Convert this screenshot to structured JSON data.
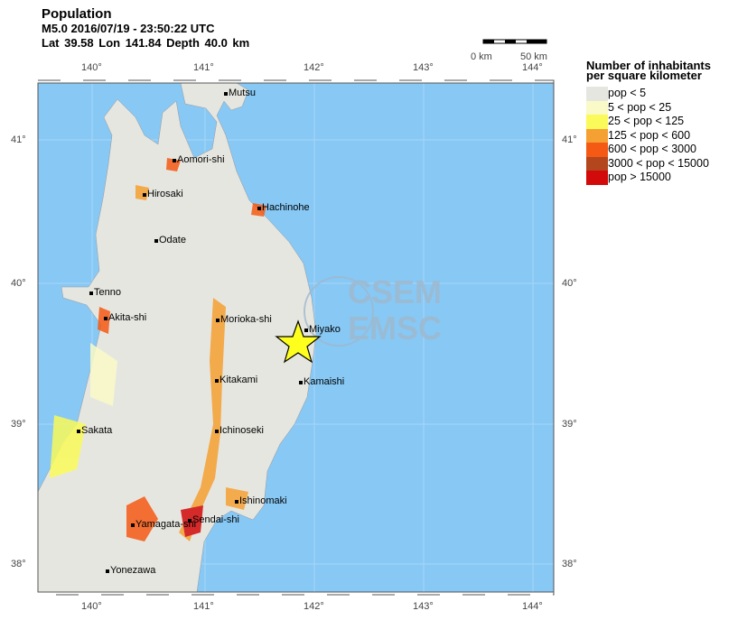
{
  "header": {
    "title": "Population",
    "event": "M5.0  2016/07/19 - 23:50:22 UTC",
    "location": "Lat 39.58    Lon 141.84    Depth  40.0 km"
  },
  "scale_bar": {
    "start": "0 km",
    "end": "50 km"
  },
  "axes": {
    "lon_ticks": [
      "140°",
      "141°",
      "142°",
      "143°",
      "144°"
    ],
    "lat_ticks": [
      "41°",
      "40°",
      "39°",
      "38°"
    ]
  },
  "legend": {
    "title_line1": "Number of inhabitants",
    "title_line2": "per square kilometer",
    "items": [
      {
        "label": "pop < 5",
        "color": "#e6e6e1"
      },
      {
        "label": "5 < pop < 25",
        "color": "#fafac8"
      },
      {
        "label": "25 < pop < 125",
        "color": "#fafa5a"
      },
      {
        "label": "125 < pop < 600",
        "color": "#f5a032"
      },
      {
        "label": "600 < pop < 3000",
        "color": "#f55a14"
      },
      {
        "label": "3000 < pop < 15000",
        "color": "#b4461e"
      },
      {
        "label": "pop > 15000",
        "color": "#d20a0a"
      }
    ]
  },
  "colors": {
    "sea": "#87c8f5",
    "land": "#e6e6e1",
    "epicenter": "#ffff1e"
  },
  "cities": [
    "Mutsu",
    "Aomori-shi",
    "Hirosaki",
    "Hachinohe",
    "Odate",
    "Tenno",
    "Akita-shi",
    "Morioka-shi",
    "Miyako",
    "Kitakami",
    "Kamaishi",
    "Sakata",
    "Ichinoseki",
    "Ishinomaki",
    "Yamagata-shi",
    "Sendai-shi",
    "Yonezawa"
  ],
  "watermark": {
    "line1": "CSEM",
    "line2": "EMSC"
  }
}
